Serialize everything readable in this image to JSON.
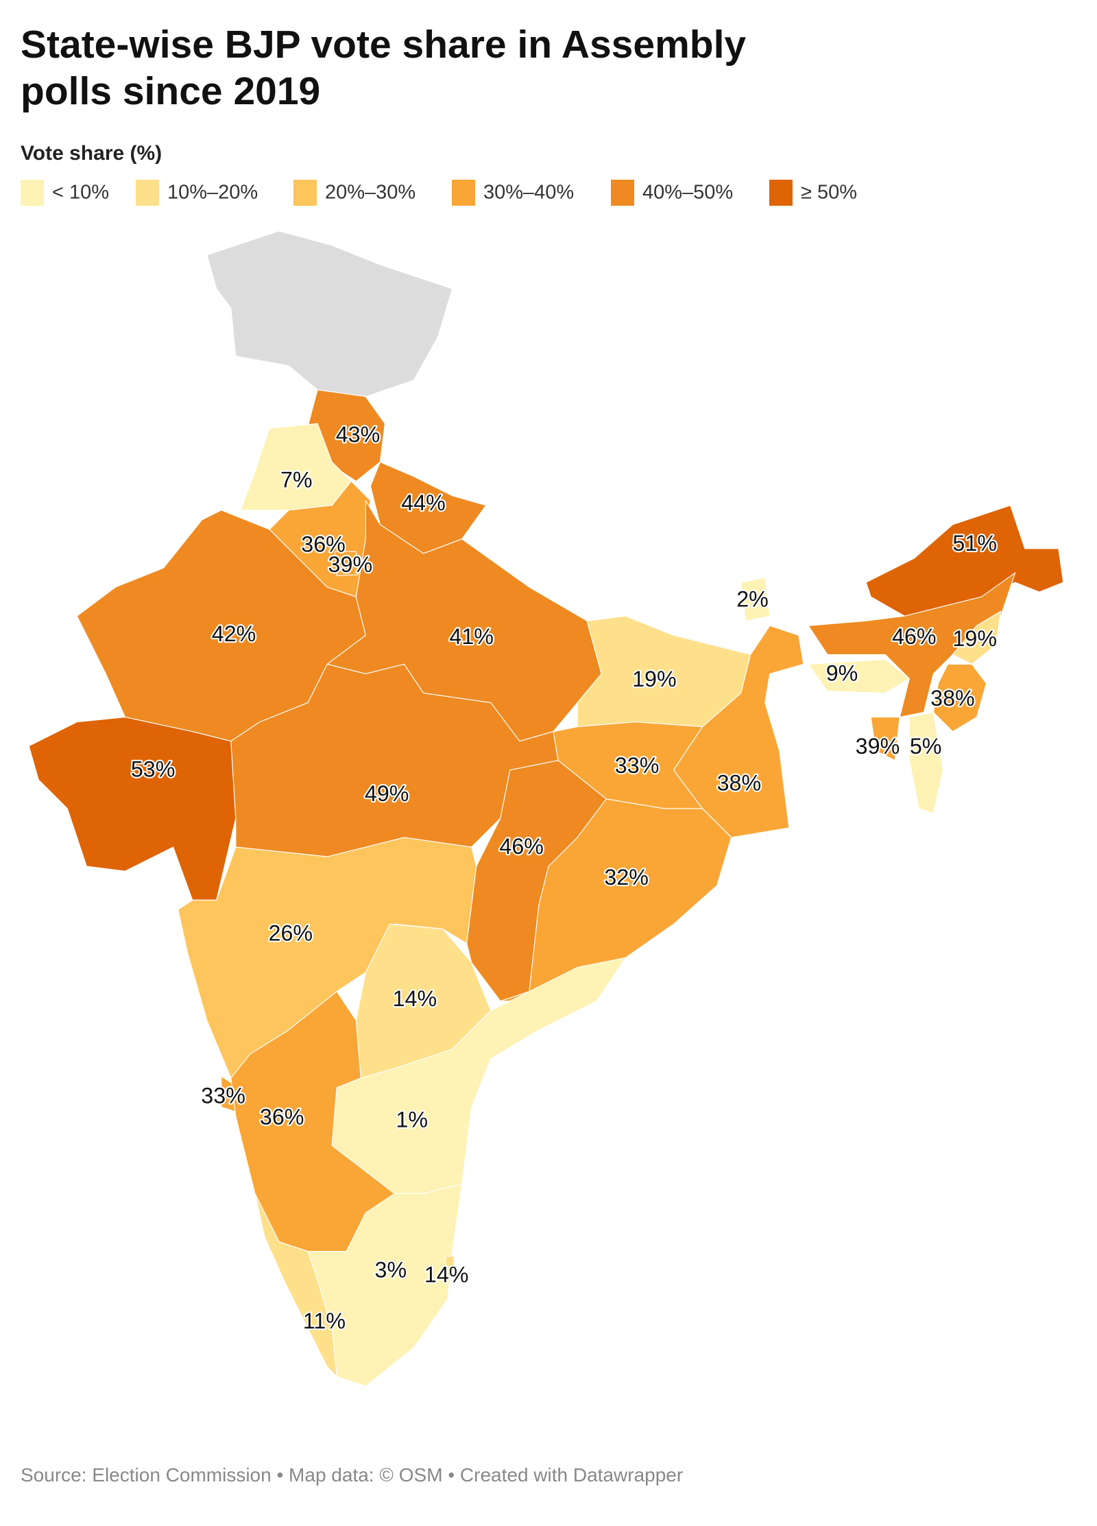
{
  "title": "State-wise BJP vote share in Assembly polls since 2019",
  "legend": {
    "title": "Vote share (%)",
    "items": [
      {
        "label": "< 10%",
        "color": "#fef2b4"
      },
      {
        "label": "10%–20%",
        "color": "#fee08b"
      },
      {
        "label": "20%–30%",
        "color": "#fdc55c"
      },
      {
        "label": "30%–40%",
        "color": "#f9a637"
      },
      {
        "label": "40%–50%",
        "color": "#ee8a21"
      },
      {
        "label": "≥ 50%",
        "color": "#df6405"
      }
    ],
    "breaks": [
      10,
      20,
      30,
      40,
      50
    ]
  },
  "map": {
    "no_data_color": "#dcdcdc",
    "values": [
      43,
      7,
      44,
      36,
      39,
      51,
      2,
      42,
      41,
      46,
      19,
      19,
      9,
      38,
      39,
      5,
      53,
      33,
      38,
      49,
      46,
      32,
      26,
      14,
      33,
      36,
      1,
      3,
      14,
      11
    ],
    "value_labels": [
      "43%",
      "7%",
      "44%",
      "36%",
      "39%",
      "51%",
      "2%",
      "42%",
      "41%",
      "46%",
      "19%",
      "19%",
      "9%",
      "38%",
      "39%",
      "5%",
      "53%",
      "33%",
      "38%",
      "49%",
      "46%",
      "32%",
      "26%",
      "14%",
      "33%",
      "36%",
      "1%",
      "3%",
      "14%",
      "11%"
    ]
  },
  "footer": "Source: Election Commission • Map data: © OSM  • Created with Datawrapper"
}
